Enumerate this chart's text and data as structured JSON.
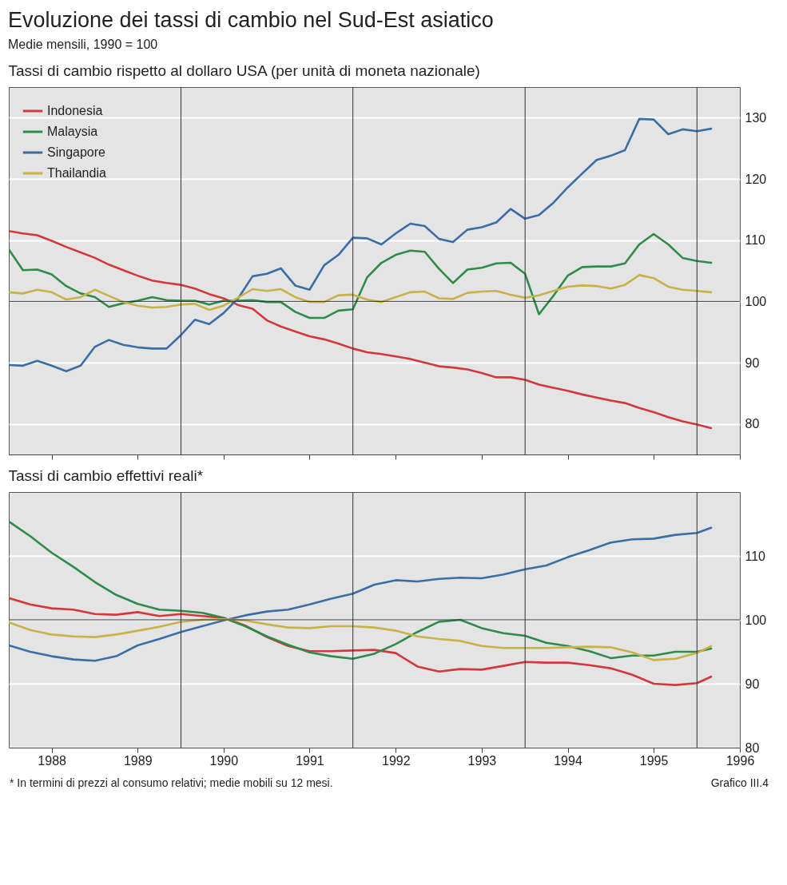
{
  "chart_data": [
    {
      "type": "line",
      "title": "Evoluzione dei tassi di cambio nel Sud-Est asiatico",
      "subtitle": "Medie mensili, 1990 = 100",
      "annotations": [
        "Tassi di cambio rispetto al dollaro USA (per unità di moneta nazionale)"
      ],
      "x": [
        "1988-01",
        "1988-03",
        "1988-05",
        "1988-07",
        "1988-09",
        "1988-11",
        "1989-01",
        "1989-03",
        "1989-05",
        "1989-07",
        "1989-09",
        "1989-11",
        "1990-01",
        "1990-03",
        "1990-05",
        "1990-07",
        "1990-09",
        "1990-11",
        "1991-01",
        "1991-03",
        "1991-05",
        "1991-07",
        "1991-09",
        "1991-11",
        "1992-01",
        "1992-03",
        "1992-05",
        "1992-07",
        "1992-09",
        "1992-11",
        "1993-01",
        "1993-03",
        "1993-05",
        "1993-07",
        "1993-09",
        "1993-11",
        "1994-01",
        "1994-03",
        "1994-05",
        "1994-07",
        "1994-09",
        "1994-11",
        "1995-01",
        "1995-03",
        "1995-05",
        "1995-07",
        "1995-09",
        "1995-11",
        "1996-01",
        "1996-03"
      ],
      "series": [
        {
          "name": "Indonesia",
          "color": "#d2383c",
          "values": [
            111.5,
            111.1,
            110.8,
            109.9,
            108.9,
            108.0,
            107.1,
            106.0,
            105.1,
            104.2,
            103.4,
            103.0,
            102.7,
            102.1,
            101.2,
            100.5,
            99.4,
            98.8,
            96.9,
            95.9,
            95.1,
            94.3,
            93.8,
            93.1,
            92.3,
            91.7,
            91.4,
            91.0,
            90.6,
            90.0,
            89.4,
            89.2,
            88.9,
            88.3,
            87.6,
            87.6,
            87.2,
            86.4,
            85.9,
            85.4,
            84.8,
            84.3,
            83.8,
            83.4,
            82.6,
            81.9,
            81.1,
            80.4,
            79.9,
            79.3
          ]
        },
        {
          "name": "Malaysia",
          "color": "#2e8b4a",
          "values": [
            108.5,
            105.1,
            105.2,
            104.4,
            102.5,
            101.3,
            100.7,
            99.1,
            99.7,
            100.1,
            100.7,
            100.2,
            100.1,
            100.1,
            99.5,
            100.1,
            100.1,
            100.2,
            99.9,
            99.9,
            98.3,
            97.3,
            97.3,
            98.5,
            98.7,
            103.9,
            106.3,
            107.6,
            108.3,
            108.1,
            105.3,
            103.0,
            105.2,
            105.5,
            106.2,
            106.3,
            104.5,
            97.9,
            100.9,
            104.2,
            105.6,
            105.7,
            105.7,
            106.2,
            109.3,
            111.0,
            109.3,
            107.1,
            106.6,
            106.3
          ]
        },
        {
          "name": "Singapore",
          "color": "#3a6ea5",
          "values": [
            89.6,
            89.5,
            90.3,
            89.5,
            88.6,
            89.5,
            92.6,
            93.7,
            92.9,
            92.5,
            92.3,
            92.3,
            94.5,
            97.0,
            96.3,
            98.1,
            100.5,
            104.1,
            104.5,
            105.4,
            102.6,
            101.9,
            105.9,
            107.6,
            110.4,
            110.3,
            109.3,
            111.1,
            112.7,
            112.3,
            110.2,
            109.7,
            111.7,
            112.1,
            112.9,
            115.1,
            113.5,
            114.1,
            116.1,
            118.6,
            120.9,
            123.1,
            123.8,
            124.7,
            129.8,
            129.7,
            127.3,
            128.1,
            127.8,
            128.2
          ]
        },
        {
          "name": "Thailandia",
          "color": "#c8b24a",
          "values": [
            101.5,
            101.3,
            101.9,
            101.5,
            100.3,
            100.7,
            101.9,
            100.9,
            99.9,
            99.3,
            99.0,
            99.1,
            99.5,
            99.6,
            98.6,
            99.3,
            100.6,
            102.0,
            101.7,
            102.0,
            100.7,
            99.9,
            99.9,
            101.0,
            101.1,
            100.3,
            99.9,
            100.7,
            101.5,
            101.6,
            100.5,
            100.4,
            101.4,
            101.6,
            101.7,
            101.1,
            100.6,
            101.0,
            101.7,
            102.4,
            102.6,
            102.5,
            102.1,
            102.7,
            104.3,
            103.8,
            102.4,
            101.9,
            101.7,
            101.5
          ]
        }
      ],
      "xlim": [
        "1988-01",
        "1996-07"
      ],
      "xticks": [
        {
          "value": "1988-07",
          "label": null
        },
        {
          "value": "1989-07",
          "label": null
        },
        {
          "value": "1990-07",
          "label": null
        },
        {
          "value": "1991-07",
          "label": null
        },
        {
          "value": "1992-07",
          "label": null
        },
        {
          "value": "1993-07",
          "label": null
        },
        {
          "value": "1994-07",
          "label": null
        },
        {
          "value": "1995-07",
          "label": null
        },
        {
          "value": "1996-07",
          "label": null
        }
      ],
      "ylim": [
        75,
        135
      ],
      "yticks": [
        80,
        90,
        100,
        110,
        120,
        130
      ],
      "tick_labels": "y",
      "grid": "y",
      "legend": "top left",
      "ref_lines": [
        {
          "axis": "y",
          "value": 100,
          "color": "#333333"
        },
        {
          "axis": "x",
          "value": "1990-01",
          "color": "#333333"
        },
        {
          "axis": "x",
          "value": "1992-01",
          "color": "#333333"
        },
        {
          "axis": "x",
          "value": "1994-01",
          "color": "#333333"
        },
        {
          "axis": "x",
          "value": "1996-01",
          "color": "#333333"
        }
      ]
    },
    {
      "type": "line",
      "title": "Tassi di cambio effettivi reali*",
      "annotations": [
        "* In termini di prezzi al consumo relativi; medie mobili su 12 mesi.",
        "Grafico III.4"
      ],
      "x": [
        "1988-01",
        "1988-04",
        "1988-07",
        "1988-10",
        "1989-01",
        "1989-04",
        "1989-07",
        "1989-10",
        "1990-01",
        "1990-04",
        "1990-07",
        "1990-10",
        "1991-01",
        "1991-04",
        "1991-07",
        "1991-10",
        "1992-01",
        "1992-04",
        "1992-07",
        "1992-10",
        "1993-01",
        "1993-04",
        "1993-07",
        "1993-10",
        "1994-01",
        "1994-04",
        "1994-07",
        "1994-10",
        "1995-01",
        "1995-04",
        "1995-07",
        "1995-10",
        "1996-01",
        "1996-03"
      ],
      "series": [
        {
          "color": "#d2383c",
          "values": [
            103.4,
            102.4,
            101.8,
            101.6,
            100.9,
            100.8,
            101.2,
            100.6,
            100.9,
            100.6,
            100.3,
            99.1,
            97.3,
            95.9,
            95.1,
            95.1,
            95.2,
            95.3,
            94.8,
            92.7,
            91.9,
            92.3,
            92.2,
            92.8,
            93.4,
            93.3,
            93.3,
            92.9,
            92.4,
            91.4,
            90.0,
            89.8,
            90.1,
            91.1
          ]
        },
        {
          "color": "#2e8b4a",
          "values": [
            115.4,
            113.1,
            110.5,
            108.3,
            105.9,
            103.9,
            102.5,
            101.6,
            101.4,
            101.1,
            100.3,
            99.0,
            97.4,
            96.1,
            94.9,
            94.3,
            93.9,
            94.7,
            96.2,
            98.1,
            99.7,
            100.0,
            98.7,
            97.9,
            97.5,
            96.4,
            95.9,
            95.1,
            94.0,
            94.4,
            94.4,
            95.0,
            95.0,
            95.5
          ]
        },
        {
          "color": "#3a6ea5",
          "values": [
            96.0,
            95.0,
            94.3,
            93.8,
            93.6,
            94.3,
            96.0,
            97.0,
            98.1,
            99.0,
            99.9,
            100.7,
            101.3,
            101.6,
            102.4,
            103.3,
            104.1,
            105.5,
            106.2,
            106.0,
            106.4,
            106.6,
            106.5,
            107.1,
            107.9,
            108.5,
            109.8,
            110.9,
            112.1,
            112.6,
            112.7,
            113.3,
            113.6,
            114.4
          ]
        },
        {
          "color": "#c8b24a",
          "values": [
            99.6,
            98.4,
            97.7,
            97.4,
            97.3,
            97.7,
            98.3,
            98.9,
            99.7,
            100.0,
            100.1,
            99.9,
            99.3,
            98.8,
            98.7,
            99.0,
            99.0,
            98.8,
            98.3,
            97.4,
            97.0,
            96.7,
            95.9,
            95.6,
            95.6,
            95.6,
            95.7,
            95.8,
            95.7,
            94.9,
            93.7,
            93.9,
            94.8,
            95.9
          ]
        }
      ],
      "xlim": [
        "1988-01",
        "1996-07"
      ],
      "xticks": [
        {
          "value": "1988-07",
          "label": "1988"
        },
        {
          "value": "1989-07",
          "label": "1989"
        },
        {
          "value": "1990-07",
          "label": "1990"
        },
        {
          "value": "1991-07",
          "label": "1991"
        },
        {
          "value": "1992-07",
          "label": "1992"
        },
        {
          "value": "1993-07",
          "label": "1993"
        },
        {
          "value": "1994-07",
          "label": "1994"
        },
        {
          "value": "1995-07",
          "label": "1995"
        },
        {
          "value": "1996-07",
          "label": "1996"
        }
      ],
      "ylim": [
        80,
        120
      ],
      "yticks": [
        80,
        90,
        100,
        110
      ],
      "grid": "y",
      "ref_lines": [
        {
          "axis": "y",
          "value": 100,
          "color": "#333333"
        },
        {
          "axis": "x",
          "value": "1990-01",
          "color": "#333333"
        },
        {
          "axis": "x",
          "value": "1992-01",
          "color": "#333333"
        },
        {
          "axis": "x",
          "value": "1994-01",
          "color": "#333333"
        },
        {
          "axis": "x",
          "value": "1996-01",
          "color": "#333333"
        }
      ]
    }
  ]
}
